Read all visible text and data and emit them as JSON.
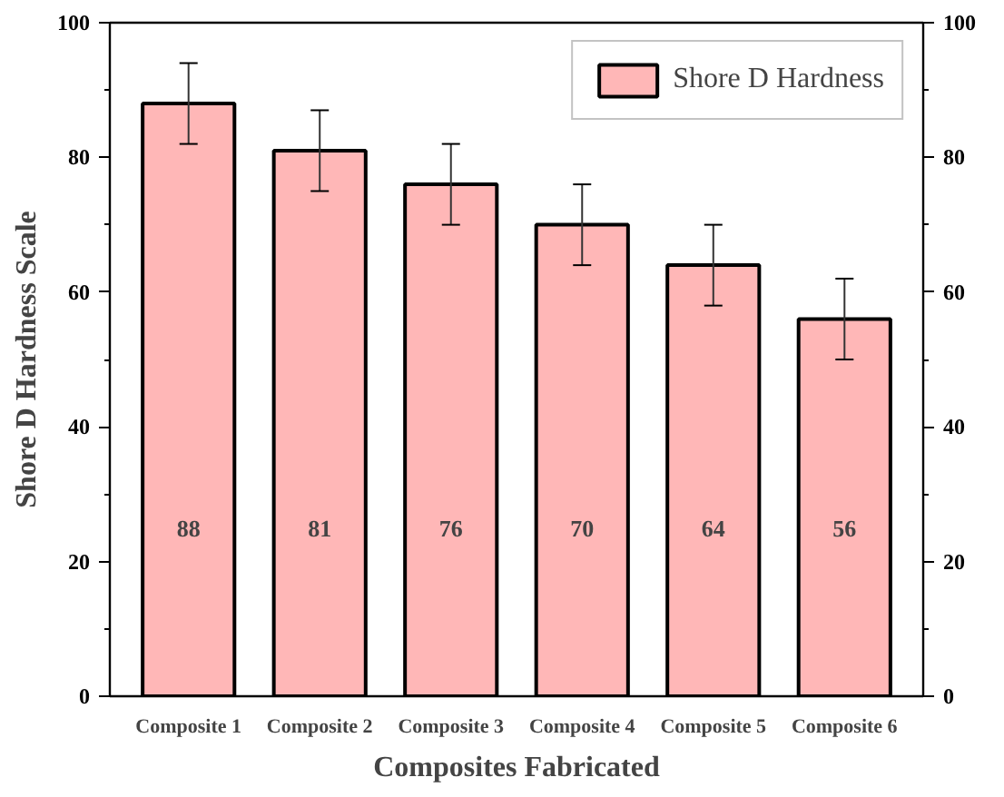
{
  "chart_data": {
    "type": "bar",
    "xlabel": "Composites Fabricated",
    "ylabel": "Shore D Hardness Scale",
    "categories": [
      "Composite 1",
      "Composite 2",
      "Composite 3",
      "Composite 4",
      "Composite 5",
      "Composite 6"
    ],
    "series": [
      {
        "name": "Shore D Hardness",
        "color": "#ffb7b7",
        "values": [
          88,
          81,
          76,
          70,
          64,
          56
        ],
        "errors": [
          6,
          6,
          6,
          6,
          6,
          6
        ]
      }
    ],
    "ylim": [
      0,
      100
    ],
    "yticks": [
      0,
      20,
      40,
      60,
      80,
      100
    ],
    "y2lim": [
      0,
      100
    ],
    "y2ticks": [
      0,
      20,
      40,
      60,
      80,
      100
    ],
    "data_labels": true,
    "legend": "top right",
    "grid": false
  }
}
